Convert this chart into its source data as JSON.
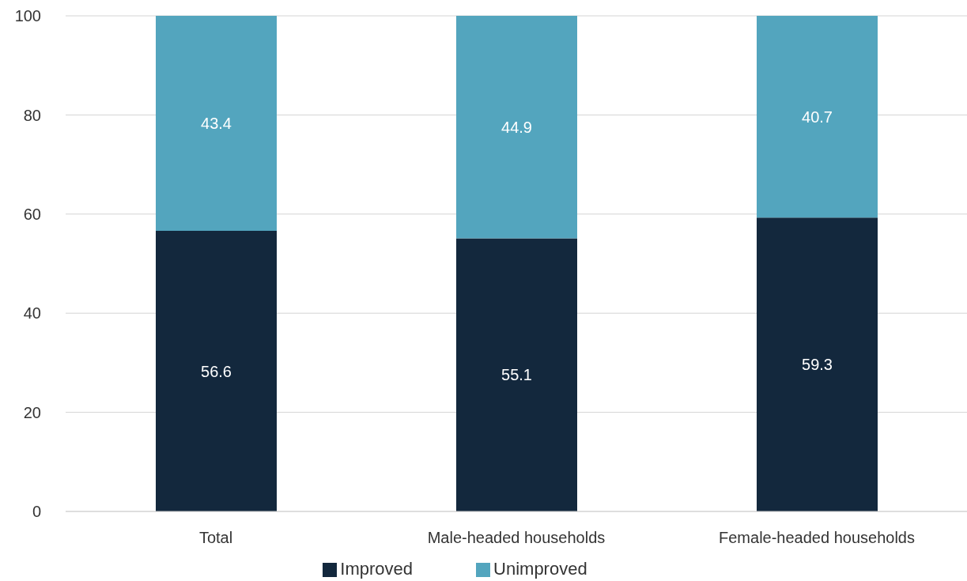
{
  "chart_data": {
    "type": "bar",
    "stacked": true,
    "categories": [
      "Total",
      "Male-headed households",
      "Female-headed households"
    ],
    "series": [
      {
        "name": "Improved",
        "color": "#13283d",
        "values": [
          56.6,
          55.1,
          59.3
        ]
      },
      {
        "name": "Unimproved",
        "color": "#53a5be",
        "values": [
          43.4,
          44.9,
          40.7
        ]
      }
    ],
    "ylim": [
      0,
      100
    ],
    "yticks": [
      0,
      20,
      40,
      60,
      80,
      100
    ],
    "grid": "y",
    "legend": "bottom",
    "data_labels": true
  }
}
